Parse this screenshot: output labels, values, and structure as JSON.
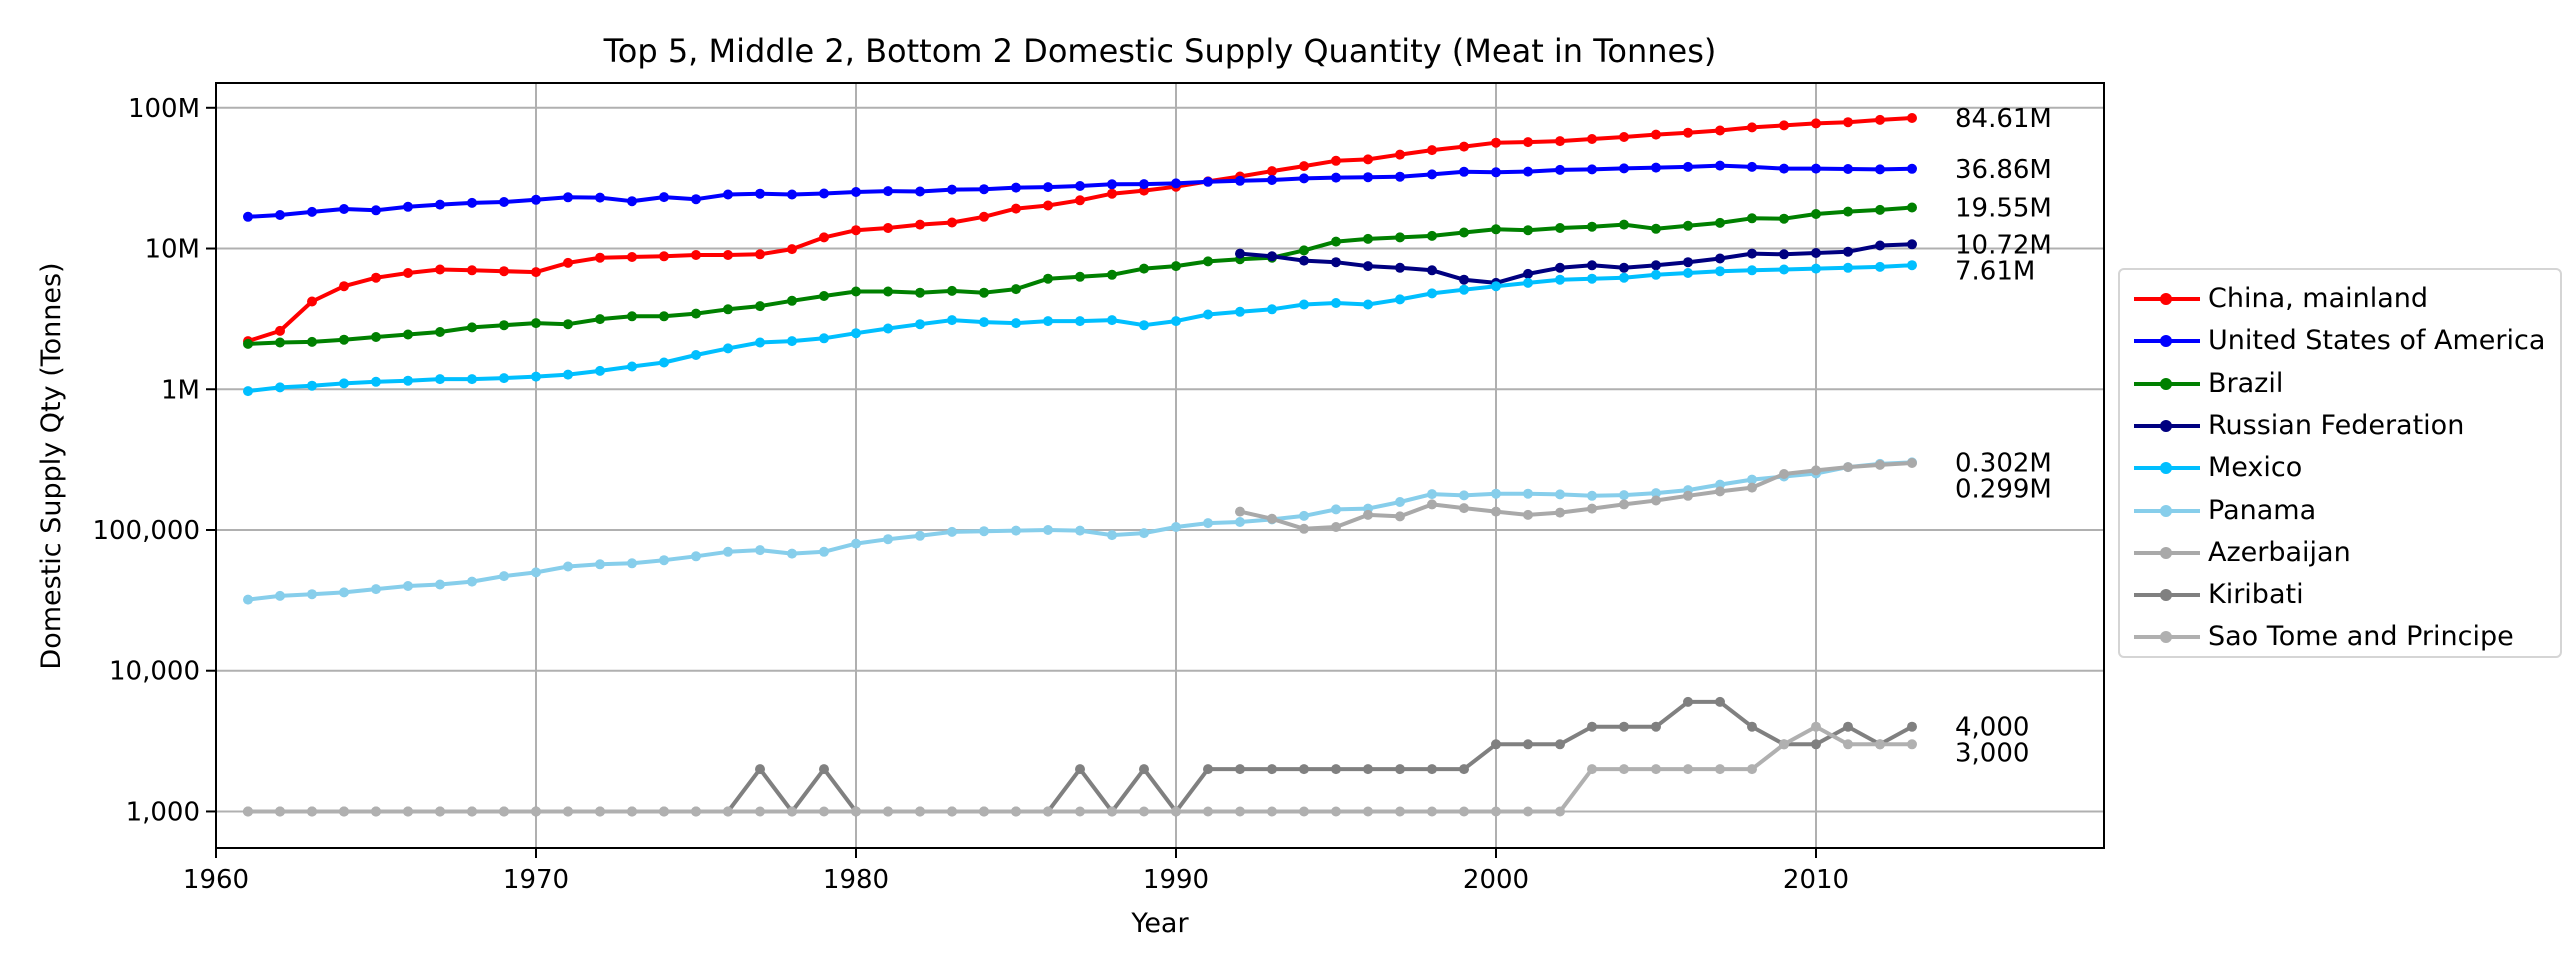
{
  "chart_data": {
    "type": "line",
    "title": "Top 5, Middle 2, Bottom 2 Domestic Supply Quantity (Meat in Tonnes)",
    "xlabel": "Year",
    "ylabel": "Domestic Supply Qty (Tonnes)",
    "xlim": [
      1960,
      2019
    ],
    "ylim": [
      550,
      150000000
    ],
    "yscale": "log",
    "grid": true,
    "legend_position": "right",
    "x_ticks": [
      "1960",
      "1970",
      "1980",
      "1990",
      "2000",
      "2010"
    ],
    "y_ticks": [
      {
        "value": 1000,
        "label": "1,000"
      },
      {
        "value": 10000,
        "label": "10,000"
      },
      {
        "value": 100000,
        "label": "100,000"
      },
      {
        "value": 1000000,
        "label": "1M"
      },
      {
        "value": 10000000,
        "label": "10M"
      },
      {
        "value": 100000000,
        "label": "100M"
      }
    ],
    "end_labels": [
      {
        "text": "84.61M",
        "value": 84610000
      },
      {
        "text": "36.86M",
        "value": 36860000
      },
      {
        "text": "19.55M",
        "value": 19550000
      },
      {
        "text": "10.72M",
        "value": 10720000
      },
      {
        "text": "7.61M",
        "value": 7610000
      },
      {
        "text": "0.302M",
        "value": 302000
      },
      {
        "text": "0.299M",
        "value": 299000
      },
      {
        "text": "4,000",
        "value": 4000
      },
      {
        "text": "3,000",
        "value": 3000
      }
    ],
    "series": [
      {
        "name": "China, mainland",
        "color": "#ff0000",
        "start": 1961,
        "values": [
          2200000,
          2600000,
          4200000,
          5400000,
          6200000,
          6700000,
          7100000,
          7000000,
          6900000,
          6800000,
          7900000,
          8600000,
          8700000,
          8800000,
          9000000,
          9000000,
          9100000,
          9900000,
          12000000,
          13500000,
          14000000,
          14800000,
          15300000,
          16800000,
          19200000,
          20200000,
          22000000,
          24500000,
          25800000,
          27500000,
          30000000,
          32500000,
          35500000,
          38500000,
          42000000,
          43000000,
          46500000,
          50000000,
          53000000,
          56500000,
          57000000,
          58000000,
          60000000,
          62000000,
          64500000,
          66500000,
          69000000,
          72500000,
          75000000,
          77500000,
          79000000,
          82000000,
          84610000
        ]
      },
      {
        "name": "United States of America",
        "color": "#0000ff",
        "start": 1961,
        "values": [
          16800000,
          17300000,
          18200000,
          19100000,
          18700000,
          19800000,
          20500000,
          21100000,
          21400000,
          22200000,
          23100000,
          23000000,
          21700000,
          23200000,
          22400000,
          24200000,
          24500000,
          24200000,
          24600000,
          25200000,
          25600000,
          25400000,
          26200000,
          26400000,
          27100000,
          27300000,
          27800000,
          28600000,
          28700000,
          29000000,
          29800000,
          30300000,
          30700000,
          31500000,
          31900000,
          32100000,
          32400000,
          33600000,
          35100000,
          34800000,
          35200000,
          36200000,
          36500000,
          37100000,
          37600000,
          38000000,
          38800000,
          38000000,
          37000000,
          37000000,
          36700000,
          36500000,
          36860000
        ]
      },
      {
        "name": "Brazil",
        "color": "#008000",
        "start": 1961,
        "values": [
          2100000,
          2150000,
          2170000,
          2250000,
          2350000,
          2450000,
          2550000,
          2750000,
          2850000,
          2950000,
          2900000,
          3150000,
          3300000,
          3300000,
          3450000,
          3700000,
          3900000,
          4250000,
          4600000,
          4950000,
          4950000,
          4850000,
          5000000,
          4850000,
          5150000,
          6100000,
          6300000,
          6500000,
          7200000,
          7500000,
          8100000,
          8400000,
          8600000,
          9700000,
          11200000,
          11700000,
          12000000,
          12300000,
          13000000,
          13700000,
          13500000,
          14000000,
          14300000,
          14800000,
          13800000,
          14500000,
          15200000,
          16400000,
          16300000,
          17600000,
          18300000,
          18800000,
          19550000
        ]
      },
      {
        "name": "Russian Federation",
        "color": "#000080",
        "start": 1992,
        "values": [
          9200000,
          8800000,
          8200000,
          8000000,
          7500000,
          7300000,
          7000000,
          6000000,
          5700000,
          6600000,
          7300000,
          7600000,
          7300000,
          7600000,
          8000000,
          8500000,
          9200000,
          9100000,
          9300000,
          9500000,
          10500000,
          10720000
        ]
      },
      {
        "name": "Mexico",
        "color": "#00bfff",
        "start": 1961,
        "values": [
          970000,
          1030000,
          1060000,
          1100000,
          1130000,
          1150000,
          1180000,
          1180000,
          1200000,
          1230000,
          1270000,
          1350000,
          1450000,
          1550000,
          1750000,
          1950000,
          2150000,
          2200000,
          2300000,
          2500000,
          2700000,
          2900000,
          3100000,
          3000000,
          2950000,
          3050000,
          3050000,
          3100000,
          2850000,
          3050000,
          3400000,
          3550000,
          3700000,
          4000000,
          4100000,
          4000000,
          4350000,
          4800000,
          5100000,
          5400000,
          5700000,
          6000000,
          6100000,
          6200000,
          6500000,
          6700000,
          6900000,
          7000000,
          7100000,
          7200000,
          7300000,
          7400000,
          7610000
        ]
      },
      {
        "name": "Panama",
        "color": "#87ceeb",
        "start": 1961,
        "values": [
          32000,
          34000,
          35000,
          36000,
          38000,
          40000,
          41000,
          43000,
          47000,
          50000,
          55000,
          57000,
          58000,
          61000,
          65000,
          70000,
          72000,
          68000,
          70000,
          80000,
          86000,
          91000,
          97000,
          98000,
          99000,
          100000,
          99000,
          92000,
          95000,
          105000,
          112000,
          114000,
          119000,
          126000,
          140000,
          142000,
          158000,
          180000,
          176000,
          181000,
          181000,
          179000,
          175000,
          177000,
          183000,
          192000,
          210000,
          228000,
          240000,
          252000,
          280000,
          295000,
          302000
        ]
      },
      {
        "name": "Azerbaijan",
        "color": "#a9a9a9",
        "start": 1992,
        "values": [
          135000,
          120000,
          102000,
          105000,
          128000,
          125000,
          152000,
          143000,
          135000,
          128000,
          133000,
          142000,
          152000,
          162000,
          175000,
          188000,
          200000,
          250000,
          265000,
          280000,
          290000,
          299000
        ]
      },
      {
        "name": "Kiribati",
        "color": "#808080",
        "start": 1961,
        "values": [
          1000,
          1000,
          1000,
          1000,
          1000,
          1000,
          1000,
          1000,
          1000,
          1000,
          1000,
          1000,
          1000,
          1000,
          1000,
          1000,
          2000,
          1000,
          2000,
          1000,
          1000,
          1000,
          1000,
          1000,
          1000,
          1000,
          2000,
          1000,
          2000,
          1000,
          2000,
          2000,
          2000,
          2000,
          2000,
          2000,
          2000,
          2000,
          2000,
          3000,
          3000,
          3000,
          4000,
          4000,
          4000,
          6000,
          6000,
          4000,
          3000,
          3000,
          4000,
          3000,
          4000
        ]
      },
      {
        "name": "Sao Tome and Principe",
        "color": "#b0b0b0",
        "start": 1961,
        "values": [
          1000,
          1000,
          1000,
          1000,
          1000,
          1000,
          1000,
          1000,
          1000,
          1000,
          1000,
          1000,
          1000,
          1000,
          1000,
          1000,
          1000,
          1000,
          1000,
          1000,
          1000,
          1000,
          1000,
          1000,
          1000,
          1000,
          1000,
          1000,
          1000,
          1000,
          1000,
          1000,
          1000,
          1000,
          1000,
          1000,
          1000,
          1000,
          1000,
          1000,
          1000,
          1000,
          2000,
          2000,
          2000,
          2000,
          2000,
          2000,
          3000,
          4000,
          3000,
          3000,
          3000
        ]
      }
    ]
  }
}
